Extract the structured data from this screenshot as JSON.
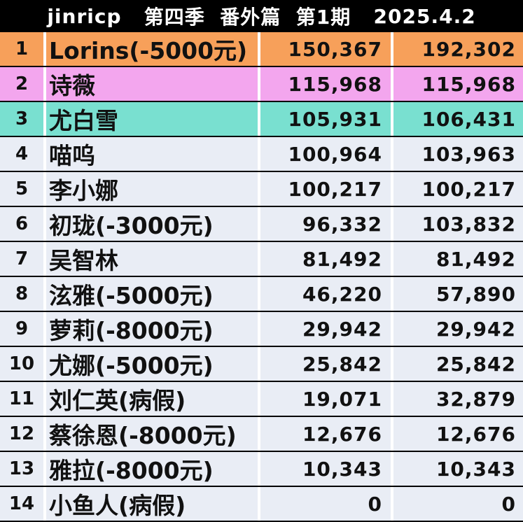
{
  "header": {
    "author": "jinricp",
    "season": "第四季",
    "special": "番外篇",
    "episode": "第1期",
    "date": "2025.4.2"
  },
  "colors": {
    "row1": "#f7a05a",
    "row2": "#f3a6ee",
    "row3": "#79e0d0",
    "default": "#e9edf5"
  },
  "rows": [
    {
      "rank": "1",
      "name": "Lorins(-5000元)",
      "v1": "150,367",
      "v2": "192,302"
    },
    {
      "rank": "2",
      "name": "诗薇",
      "v1": "115,968",
      "v2": "115,968"
    },
    {
      "rank": "3",
      "name": "尤白雪",
      "v1": "105,931",
      "v2": "106,431"
    },
    {
      "rank": "4",
      "name": "喵呜",
      "v1": "100,964",
      "v2": "103,963"
    },
    {
      "rank": "5",
      "name": "李小娜",
      "v1": "100,217",
      "v2": "100,217"
    },
    {
      "rank": "6",
      "name": "初珑(-3000元)",
      "v1": "96,332",
      "v2": "103,832"
    },
    {
      "rank": "7",
      "name": "吴智林",
      "v1": "81,492",
      "v2": "81,492"
    },
    {
      "rank": "8",
      "name": "泫雅(-5000元)",
      "v1": "46,220",
      "v2": "57,890"
    },
    {
      "rank": "9",
      "name": "萝莉(-8000元)",
      "v1": "29,942",
      "v2": "29,942"
    },
    {
      "rank": "10",
      "name": "尤娜(-5000元)",
      "v1": "25,842",
      "v2": "25,842"
    },
    {
      "rank": "11",
      "name": "刘仁英(病假)",
      "v1": "19,071",
      "v2": "32,879"
    },
    {
      "rank": "12",
      "name": "蔡徐恩(-8000元)",
      "v1": "12,676",
      "v2": "12,676"
    },
    {
      "rank": "13",
      "name": "雅拉(-8000元)",
      "v1": "10,343",
      "v2": "10,343"
    },
    {
      "rank": "14",
      "name": "小鱼人(病假)",
      "v1": "0",
      "v2": "0"
    }
  ]
}
